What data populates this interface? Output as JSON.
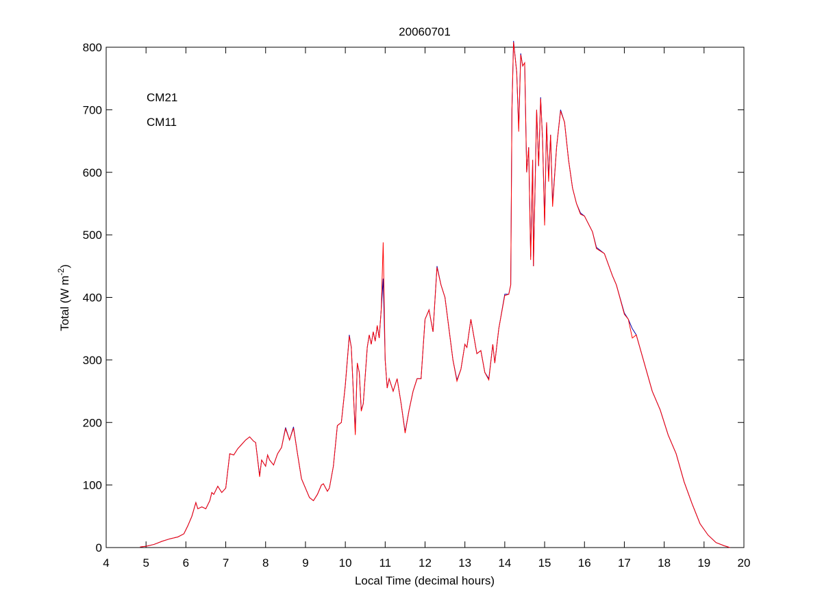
{
  "chart_data": {
    "type": "line",
    "title": "20060701",
    "xlabel": "Local Time (decimal hours)",
    "ylabel": [
      "Total (W m",
      "-2",
      ")"
    ],
    "xlim": [
      4,
      20
    ],
    "xticks": [
      4,
      5,
      6,
      7,
      8,
      9,
      10,
      11,
      12,
      13,
      14,
      15,
      16,
      17,
      18,
      19,
      20
    ],
    "ylim": [
      0,
      800
    ],
    "yticks": [
      0,
      100,
      200,
      300,
      400,
      500,
      600,
      700,
      800
    ],
    "x": [
      4.85,
      5.0,
      5.2,
      5.4,
      5.6,
      5.8,
      5.95,
      6.05,
      6.15,
      6.25,
      6.3,
      6.4,
      6.5,
      6.6,
      6.65,
      6.7,
      6.8,
      6.9,
      7.0,
      7.1,
      7.2,
      7.3,
      7.4,
      7.5,
      7.6,
      7.7,
      7.75,
      7.85,
      7.9,
      8.0,
      8.05,
      8.1,
      8.2,
      8.3,
      8.4,
      8.5,
      8.6,
      8.7,
      8.8,
      8.9,
      9.0,
      9.1,
      9.2,
      9.3,
      9.4,
      9.45,
      9.55,
      9.6,
      9.7,
      9.8,
      9.9,
      10.0,
      10.1,
      10.15,
      10.2,
      10.25,
      10.3,
      10.35,
      10.4,
      10.45,
      10.55,
      10.6,
      10.65,
      10.7,
      10.75,
      10.8,
      10.85,
      10.9,
      10.95,
      11.0,
      11.05,
      11.1,
      11.2,
      11.3,
      11.4,
      11.5,
      11.6,
      11.7,
      11.8,
      11.9,
      12.0,
      12.1,
      12.2,
      12.3,
      12.4,
      12.5,
      12.6,
      12.7,
      12.8,
      12.9,
      13.0,
      13.05,
      13.15,
      13.3,
      13.4,
      13.5,
      13.6,
      13.7,
      13.75,
      13.85,
      14.0,
      14.1,
      14.15,
      14.18,
      14.22,
      14.3,
      14.35,
      14.4,
      14.45,
      14.5,
      14.55,
      14.6,
      14.65,
      14.7,
      14.72,
      14.8,
      14.85,
      14.9,
      14.95,
      15.0,
      15.05,
      15.1,
      15.15,
      15.2,
      15.3,
      15.4,
      15.5,
      15.6,
      15.7,
      15.8,
      15.9,
      16.0,
      16.2,
      16.3,
      16.5,
      16.7,
      16.8,
      17.0,
      17.1,
      17.2,
      17.3,
      17.5,
      17.7,
      17.9,
      18.1,
      18.3,
      18.5,
      18.7,
      18.9,
      19.1,
      19.3,
      19.5,
      19.65
    ],
    "series": [
      {
        "name": "CM21",
        "color": "#0000aa",
        "values": [
          1,
          2,
          5,
          10,
          14,
          17,
          22,
          35,
          50,
          72,
          62,
          65,
          62,
          75,
          88,
          85,
          98,
          88,
          95,
          150,
          148,
          158,
          165,
          172,
          177,
          170,
          168,
          115,
          140,
          130,
          148,
          140,
          132,
          150,
          160,
          192,
          172,
          193,
          150,
          110,
          95,
          80,
          75,
          85,
          100,
          102,
          90,
          95,
          130,
          195,
          200,
          260,
          340,
          320,
          250,
          185,
          295,
          280,
          220,
          230,
          320,
          340,
          325,
          345,
          330,
          355,
          335,
          380,
          430,
          300,
          255,
          270,
          250,
          270,
          230,
          185,
          220,
          250,
          270,
          270,
          365,
          380,
          345,
          450,
          420,
          400,
          350,
          300,
          268,
          285,
          325,
          320,
          365,
          310,
          315,
          280,
          270,
          325,
          295,
          350,
          405,
          405,
          420,
          700,
          810,
          760,
          670,
          790,
          770,
          775,
          600,
          640,
          465,
          620,
          450,
          700,
          610,
          720,
          650,
          520,
          680,
          590,
          660,
          550,
          640,
          700,
          680,
          620,
          575,
          550,
          535,
          530,
          505,
          480,
          470,
          435,
          420,
          375,
          365,
          350,
          340,
          295,
          250,
          220,
          180,
          150,
          105,
          70,
          38,
          20,
          8,
          3,
          0
        ]
      },
      {
        "name": "CM11",
        "color": "#ff0000",
        "values": [
          1,
          2,
          5,
          10,
          14,
          17,
          22,
          35,
          50,
          72,
          62,
          65,
          62,
          75,
          88,
          85,
          98,
          88,
          95,
          150,
          148,
          158,
          165,
          172,
          177,
          170,
          168,
          113,
          140,
          130,
          148,
          140,
          132,
          150,
          160,
          190,
          172,
          191,
          150,
          110,
          95,
          80,
          75,
          85,
          100,
          102,
          90,
          95,
          130,
          195,
          200,
          260,
          338,
          320,
          250,
          180,
          295,
          280,
          218,
          230,
          320,
          340,
          325,
          345,
          330,
          355,
          335,
          380,
          488,
          300,
          255,
          270,
          250,
          270,
          230,
          183,
          220,
          250,
          270,
          270,
          365,
          380,
          345,
          448,
          420,
          400,
          350,
          300,
          266,
          285,
          325,
          320,
          365,
          310,
          315,
          280,
          268,
          325,
          295,
          350,
          403,
          405,
          420,
          700,
          808,
          760,
          665,
          788,
          770,
          775,
          600,
          640,
          460,
          620,
          450,
          700,
          610,
          718,
          650,
          515,
          680,
          585,
          660,
          545,
          640,
          698,
          680,
          620,
          575,
          550,
          533,
          530,
          505,
          478,
          470,
          435,
          420,
          373,
          365,
          335,
          340,
          295,
          250,
          220,
          180,
          150,
          105,
          70,
          38,
          20,
          8,
          3,
          0
        ]
      }
    ]
  }
}
